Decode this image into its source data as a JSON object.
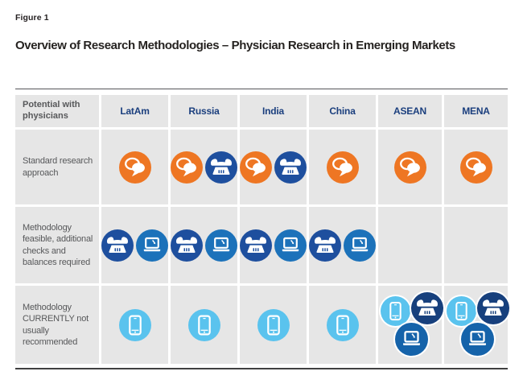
{
  "figure_label": "Figure 1",
  "title": "Overview of Research Methodologies – Physician Research in Emerging Markets",
  "colors": {
    "chat_orange": "#ee7623",
    "phone_blue": "#1e4f9e",
    "phone_navy": "#17407d",
    "laptop_blue": "#1c72ba",
    "laptop_deep": "#1563aa",
    "smartphone_sky": "#5ac3ee",
    "header_navy": "#1b3f7e",
    "label_gray": "#57585a",
    "cell_gray": "#e6e6e6"
  },
  "icon_names": {
    "chat": "speech-bubbles-icon",
    "phone": "telephone-icon",
    "laptop": "laptop-icon",
    "smartphone": "smartphone-icon"
  },
  "table": {
    "corner_label": "Potential with physicians",
    "columns": [
      "LatAm",
      "Russia",
      "India",
      "China",
      "ASEAN",
      "MENA"
    ],
    "rows": [
      {
        "label": "Standard research approach",
        "cells": [
          {
            "icons": [
              "chat"
            ]
          },
          {
            "icons": [
              "chat",
              "phone"
            ]
          },
          {
            "icons": [
              "chat",
              "phone"
            ]
          },
          {
            "icons": [
              "chat"
            ]
          },
          {
            "icons": [
              "chat"
            ]
          },
          {
            "icons": [
              "chat"
            ]
          }
        ]
      },
      {
        "label": "Methodology feasible, additional checks and balances required",
        "cells": [
          {
            "icons": [
              "phone",
              "laptop"
            ]
          },
          {
            "icons": [
              "phone",
              "laptop"
            ]
          },
          {
            "icons": [
              "phone",
              "laptop"
            ]
          },
          {
            "icons": [
              "phone",
              "laptop"
            ]
          },
          {
            "icons": []
          },
          {
            "icons": []
          }
        ]
      },
      {
        "label": "Methodology CURRENTLY not usually recommended",
        "cells": [
          {
            "icons": [
              "smartphone"
            ]
          },
          {
            "icons": [
              "smartphone"
            ]
          },
          {
            "icons": [
              "smartphone"
            ]
          },
          {
            "icons": [
              "smartphone"
            ]
          },
          {
            "icons": [
              "smartphone",
              "phone_navy",
              "laptop_deep"
            ],
            "layout": "cluster"
          },
          {
            "icons": [
              "smartphone",
              "phone_navy",
              "laptop_deep"
            ],
            "layout": "cluster"
          }
        ]
      }
    ]
  }
}
